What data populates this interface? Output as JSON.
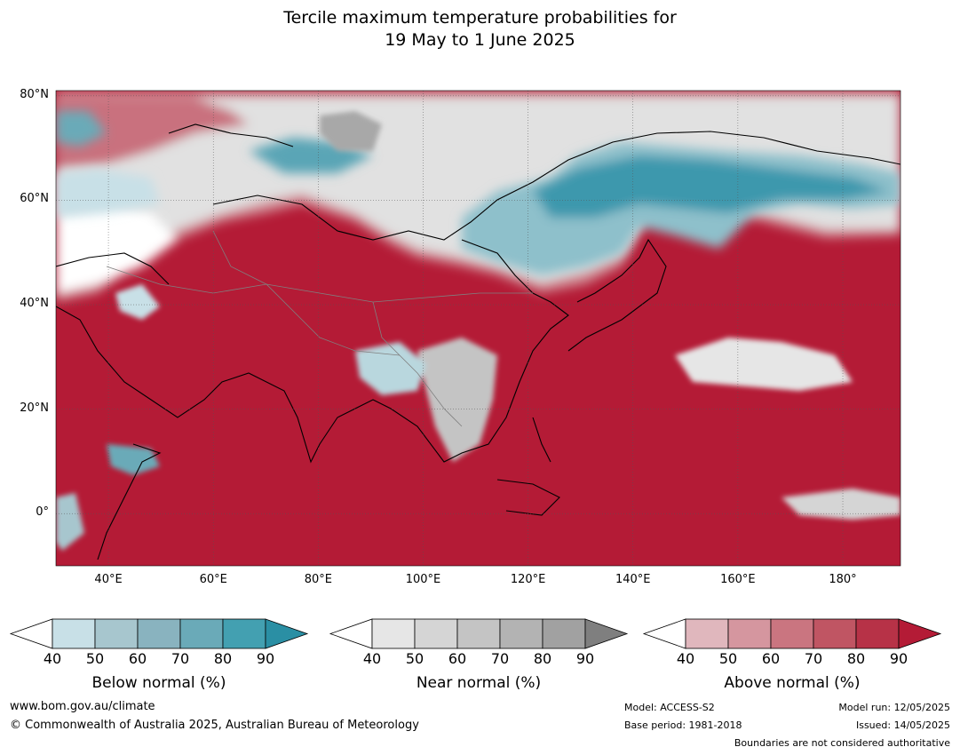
{
  "title": {
    "line1": "Tercile maximum temperature probabilities for",
    "line2": "19 May to 1 June 2025"
  },
  "map": {
    "extent": {
      "lon_min": 30,
      "lon_max": 191,
      "lat_min": -10,
      "lat_max": 81
    },
    "lat_ticks": [
      {
        "value": 80,
        "label": "80°N"
      },
      {
        "value": 60,
        "label": "60°N"
      },
      {
        "value": 40,
        "label": "40°N"
      },
      {
        "value": 20,
        "label": "20°N"
      },
      {
        "value": 0,
        "label": "0°"
      }
    ],
    "lon_ticks": [
      {
        "value": 40,
        "label": "40°E"
      },
      {
        "value": 60,
        "label": "60°E"
      },
      {
        "value": 80,
        "label": "80°E"
      },
      {
        "value": 100,
        "label": "100°E"
      },
      {
        "value": 120,
        "label": "120°E"
      },
      {
        "value": 140,
        "label": "140°E"
      },
      {
        "value": 160,
        "label": "160°E"
      },
      {
        "value": 180,
        "label": "180°"
      }
    ],
    "colors": {
      "ocean_above_dominant": "#b41b36",
      "land_default": "#e4e4e4",
      "coastline": "#000000",
      "borders": "#808080",
      "gridlines": "#555555"
    }
  },
  "legends": [
    {
      "id": "below",
      "title": "Below normal (%)",
      "ticks": [
        "40",
        "50",
        "60",
        "70",
        "80",
        "90"
      ],
      "colors": [
        "#ffffff",
        "#c8e0e7",
        "#a7c6ce",
        "#89b3bf",
        "#6aaab8",
        "#43a0b1",
        "#2a8fa4"
      ]
    },
    {
      "id": "near",
      "title": "Near normal (%)",
      "ticks": [
        "40",
        "50",
        "60",
        "70",
        "80",
        "90"
      ],
      "colors": [
        "#ffffff",
        "#e6e6e6",
        "#d5d5d5",
        "#c4c4c4",
        "#b3b3b3",
        "#a1a1a1",
        "#7f7f7f"
      ]
    },
    {
      "id": "above",
      "title": "Above normal (%)",
      "ticks": [
        "40",
        "50",
        "60",
        "70",
        "80",
        "90"
      ],
      "colors": [
        "#ffffff",
        "#e0b7bd",
        "#d5969f",
        "#ca7580",
        "#c05563",
        "#b73247",
        "#b41b36"
      ]
    }
  ],
  "footer": {
    "website": "www.bom.gov.au/climate",
    "copyright": "© Commonwealth of Australia 2025, Australian Bureau of Meteorology",
    "model": "Model: ACCESS-S2",
    "base_period": "Base period: 1981-2018",
    "model_run": "Model run: 12/05/2025",
    "issued": "Issued: 14/05/2025",
    "disclaimer": "Boundaries are not considered authoritative"
  }
}
